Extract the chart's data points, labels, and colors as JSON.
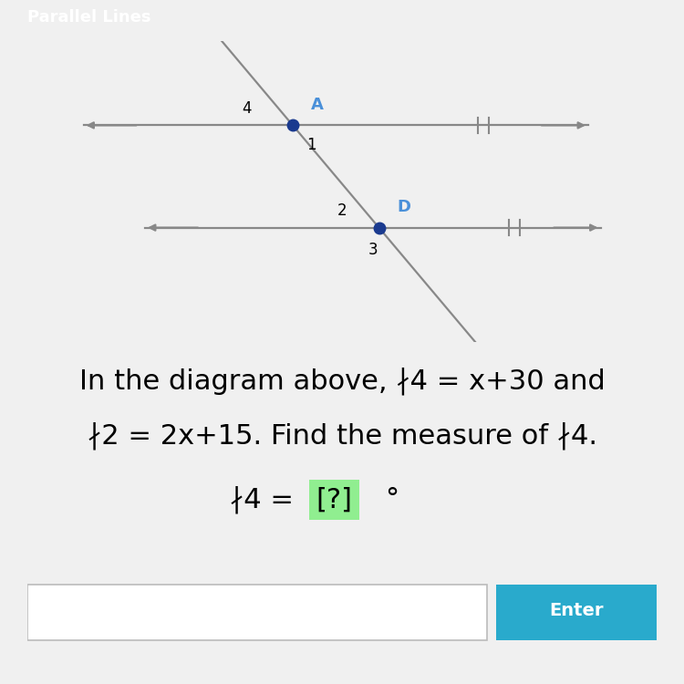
{
  "title": "Parallel Lines",
  "title_bar_color": "#4a90d9",
  "title_text_color": "#ffffff",
  "body_bg": "#f0f0f0",
  "point_color_A": "#1a3a8f",
  "point_color_D": "#1a3a8f",
  "label_A_color": "#4a90d9",
  "label_D_color": "#4a90d9",
  "line_color": "#888888",
  "transversal_color": "#888888",
  "label_A": "A",
  "label_D": "D",
  "label_1": "1",
  "label_2": "2",
  "label_3": "3",
  "label_4": "4",
  "answer_bg": "#90ee90",
  "enter_btn_color": "#29aacc",
  "enter_text": "Enter",
  "font_size_main": 22,
  "font_size_label": 13
}
